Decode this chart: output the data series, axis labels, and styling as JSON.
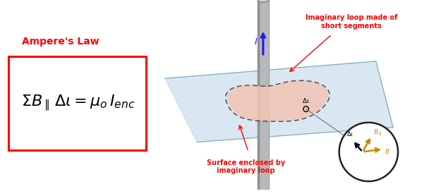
{
  "title": "Ampere's Law",
  "equation": "$\\Sigma B_{\\parallel}\\, \\Delta\\iota = \\mu_o\\, I_{enc}$",
  "title_color": "#ff0000",
  "box_color": "#ff0000",
  "background_color": "#ffffff",
  "plane_color": "#b8d4e8",
  "plane_alpha": 0.55,
  "surface_color": "#f2c4b4",
  "surface_alpha": 0.85,
  "wire_color": "#b8b8b8",
  "wire_dark": "#909090",
  "arrow_color": "#1a1aff",
  "loop_color": "#444444",
  "label_color": "#ff0000",
  "inset_circle_color": "#222222",
  "B_arrow_color": "#cc8800",
  "delta_l_label": "$\\Delta\\iota$",
  "B_label": "$B$",
  "B_par_label": "$B_{\\parallel}$",
  "I_label": "$I$",
  "surface_label": "Surface enclosed by\nimaginary loop",
  "loop_label": "Imaginary loop made of\nshort segments",
  "eq_fontsize": 16,
  "title_fontsize": 10
}
